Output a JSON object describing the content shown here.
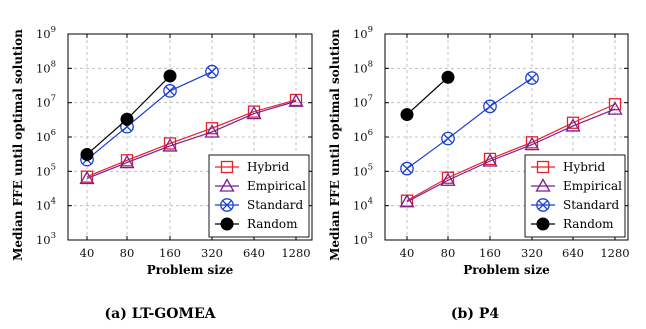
{
  "chart_data": [
    {
      "type": "line",
      "caption": "(a) LT-GOMEA",
      "xlabel": "Problem size",
      "ylabel": "Median FFE until optimal solution",
      "y_scale": "log",
      "ylim": [
        1000,
        1000000000
      ],
      "y_ticks": [
        {
          "value": 1000,
          "base": "10",
          "exp": "3"
        },
        {
          "value": 10000,
          "base": "10",
          "exp": "4"
        },
        {
          "value": 100000,
          "base": "10",
          "exp": "5"
        },
        {
          "value": 1000000,
          "base": "10",
          "exp": "6"
        },
        {
          "value": 10000000,
          "base": "10",
          "exp": "7"
        },
        {
          "value": 100000000,
          "base": "10",
          "exp": "8"
        },
        {
          "value": 1000000000,
          "base": "10",
          "exp": "9"
        }
      ],
      "x_scale": "log2",
      "categories": [
        "40",
        "80",
        "160",
        "320",
        "640",
        "1280"
      ],
      "grid": true,
      "legend_position": "bottom-right",
      "series": [
        {
          "name": "Hybrid",
          "color": "#e8202a",
          "marker": "square",
          "x": [
            40,
            80,
            160,
            320,
            640,
            1280
          ],
          "y": [
            70000,
            210000,
            650000,
            1800000,
            5500000,
            12000000
          ]
        },
        {
          "name": "Empirical",
          "color": "#7b1f8e",
          "marker": "triangle",
          "x": [
            40,
            80,
            160,
            320,
            640,
            1280
          ],
          "y": [
            62000,
            180000,
            550000,
            1400000,
            4800000,
            11000000
          ]
        },
        {
          "name": "Standard",
          "color": "#1a3fd6",
          "marker": "circle-x",
          "x": [
            40,
            80,
            160,
            320
          ],
          "y": [
            220000,
            2000000,
            22000000,
            80000000
          ]
        },
        {
          "name": "Random",
          "color": "#000000",
          "marker": "filled-circle",
          "x": [
            40,
            80,
            160
          ],
          "y": [
            310000,
            3300000,
            60000000
          ]
        }
      ]
    },
    {
      "type": "line",
      "caption": "(b) P4",
      "xlabel": "Problem size",
      "ylabel": "Median FFE until optimal solution",
      "y_scale": "log",
      "ylim": [
        1000,
        1000000000
      ],
      "y_ticks": [
        {
          "value": 1000,
          "base": "10",
          "exp": "3"
        },
        {
          "value": 10000,
          "base": "10",
          "exp": "4"
        },
        {
          "value": 100000,
          "base": "10",
          "exp": "5"
        },
        {
          "value": 1000000,
          "base": "10",
          "exp": "6"
        },
        {
          "value": 10000000,
          "base": "10",
          "exp": "7"
        },
        {
          "value": 100000000,
          "base": "10",
          "exp": "8"
        },
        {
          "value": 1000000000,
          "base": "10",
          "exp": "9"
        }
      ],
      "x_scale": "log2",
      "categories": [
        "40",
        "80",
        "160",
        "320",
        "640",
        "1280"
      ],
      "grid": true,
      "legend_position": "bottom-right",
      "series": [
        {
          "name": "Hybrid",
          "color": "#e8202a",
          "marker": "square",
          "x": [
            40,
            80,
            160,
            320,
            640,
            1280
          ],
          "y": [
            14000,
            65000,
            230000,
            700000,
            2600000,
            9000000
          ]
        },
        {
          "name": "Empirical",
          "color": "#7b1f8e",
          "marker": "triangle",
          "x": [
            40,
            80,
            160,
            320,
            640,
            1280
          ],
          "y": [
            13000,
            55000,
            200000,
            600000,
            2100000,
            6500000
          ]
        },
        {
          "name": "Standard",
          "color": "#1a3fd6",
          "marker": "circle-x",
          "x": [
            40,
            80,
            160,
            320
          ],
          "y": [
            120000,
            900000,
            7800000,
            52000000
          ]
        },
        {
          "name": "Random",
          "color": "#000000",
          "marker": "filled-circle",
          "x": [
            40,
            80
          ],
          "y": [
            4500000,
            55000000
          ]
        }
      ]
    }
  ]
}
